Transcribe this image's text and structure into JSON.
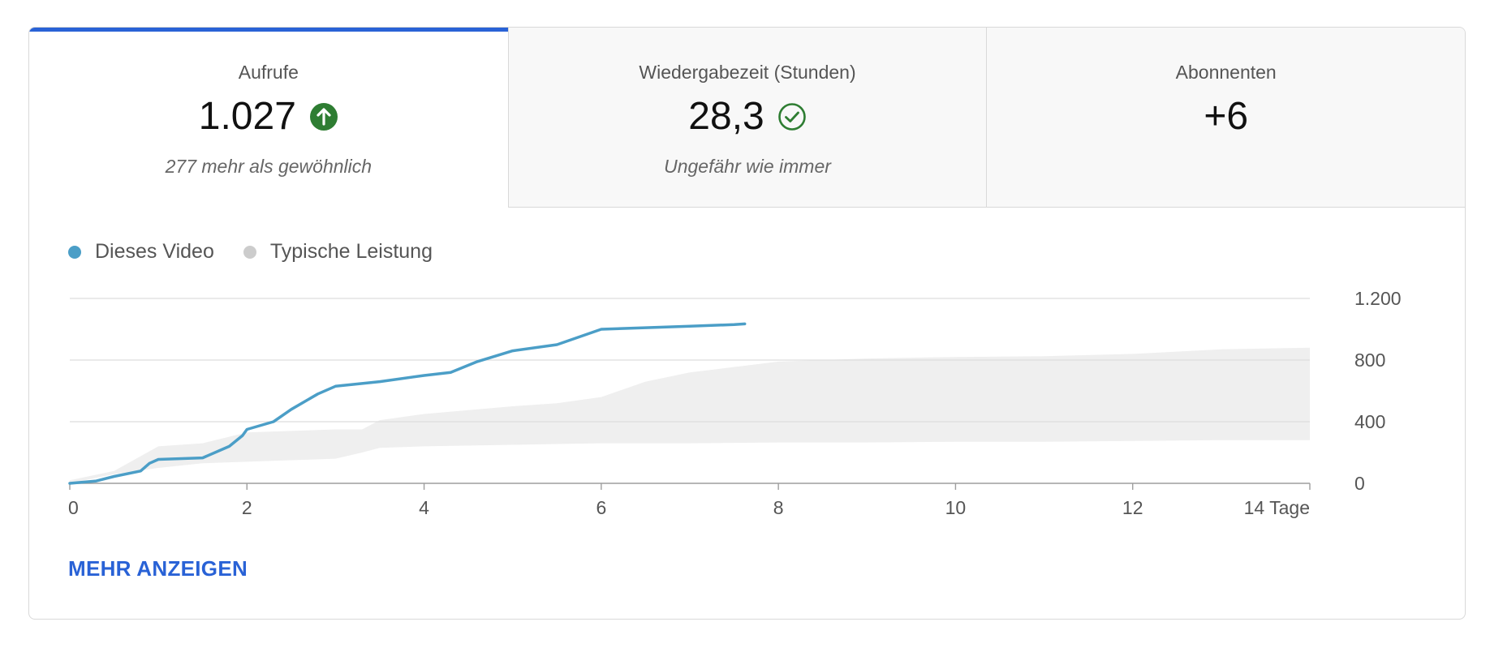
{
  "tabs": [
    {
      "label": "Aufrufe",
      "value": "1.027",
      "indicator": "arrow-up-circle-icon",
      "indicator_color": "#2e7d32",
      "note": "277 mehr als gewöhnlich"
    },
    {
      "label": "Wiedergabezeit (Stunden)",
      "value": "28,3",
      "indicator": "check-circle-icon",
      "indicator_color": "#2e7d32",
      "note": "Ungefähr wie immer"
    },
    {
      "label": "Abonnenten",
      "value": "+6",
      "note": ""
    }
  ],
  "colors": {
    "accent": "#2962d6",
    "video_line": "#4b9ec7",
    "typical_band": "#efefef"
  },
  "legend": {
    "video": "Dieses Video",
    "typical": "Typische Leistung"
  },
  "link": {
    "more": "MEHR ANZEIGEN"
  },
  "chart_data": {
    "type": "line",
    "title": "",
    "xlabel": "",
    "ylabel": "",
    "xlim": [
      0,
      14
    ],
    "ylim": [
      0,
      1200
    ],
    "x_ticks": [
      0,
      2,
      4,
      6,
      8,
      10,
      12,
      14
    ],
    "x_tick_labels": [
      "0",
      "2",
      "4",
      "6",
      "8",
      "10",
      "12",
      "14 Tage"
    ],
    "y_ticks": [
      0,
      400,
      800,
      1200
    ],
    "y_tick_labels": [
      "0",
      "400",
      "800",
      "1.200"
    ],
    "grid": true,
    "legend_position": "top-left",
    "series": [
      {
        "name": "Dieses Video",
        "type": "line",
        "x": [
          0,
          0.3,
          0.5,
          0.8,
          0.9,
          1.0,
          1.5,
          1.8,
          1.95,
          2.0,
          2.3,
          2.5,
          2.8,
          3.0,
          3.5,
          4.0,
          4.3,
          4.6,
          5.0,
          5.5,
          5.8,
          6.0,
          6.5,
          7.0,
          7.5,
          7.62
        ],
        "y": [
          0,
          15,
          45,
          80,
          130,
          155,
          165,
          240,
          310,
          350,
          400,
          480,
          580,
          630,
          660,
          700,
          720,
          790,
          860,
          900,
          960,
          1000,
          1010,
          1020,
          1030,
          1035
        ]
      },
      {
        "name": "Typische Leistung",
        "type": "band",
        "x": [
          0,
          0.5,
          1.0,
          1.5,
          2.0,
          2.5,
          3.0,
          3.3,
          3.5,
          4.0,
          5.0,
          5.5,
          6.0,
          6.5,
          7.0,
          8.0,
          9.0,
          10.0,
          11.0,
          12.0,
          13.0,
          14.0
        ],
        "upper": [
          20,
          80,
          240,
          260,
          330,
          340,
          350,
          350,
          410,
          450,
          500,
          520,
          560,
          660,
          720,
          790,
          810,
          820,
          825,
          840,
          870,
          880
        ],
        "lower": [
          0,
          60,
          100,
          130,
          140,
          150,
          160,
          200,
          230,
          240,
          250,
          255,
          260,
          260,
          260,
          265,
          265,
          270,
          270,
          275,
          280,
          280
        ]
      }
    ]
  }
}
